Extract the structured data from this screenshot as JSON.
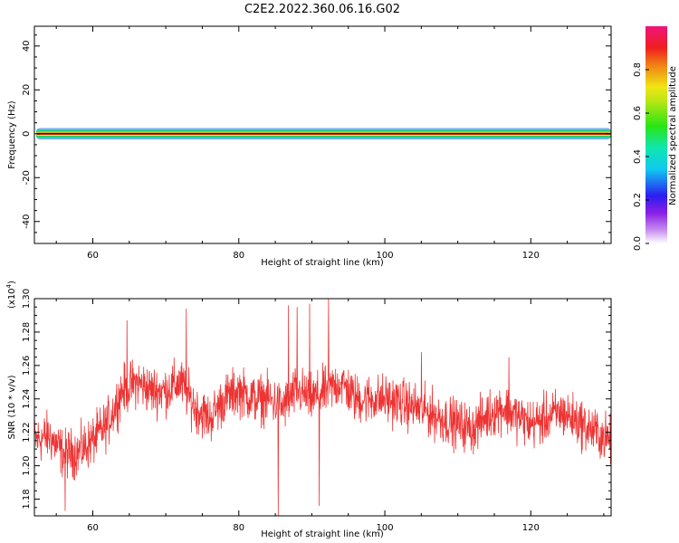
{
  "title": "C2E2.2022.360.06.16.G02",
  "chart_data": [
    {
      "type": "heatmap",
      "xlabel": "Height of straight line (km)",
      "ylabel": "Frequency (Hz)",
      "xlim": [
        52,
        131
      ],
      "ylim": [
        -50,
        49
      ],
      "x_ticks": [
        "60",
        "80",
        "100",
        "120"
      ],
      "y_ticks": [
        "-40",
        "-20",
        "0",
        "20",
        "40"
      ],
      "band": {
        "description": "narrow spectral ridge at 0 Hz across all heights",
        "layers": [
          {
            "half_width_hz": 2.6,
            "color": "#7ab0f5",
            "amplitude": 0.1
          },
          {
            "half_width_hz": 1.9,
            "color": "#1ec8d8",
            "amplitude": 0.3
          },
          {
            "half_width_hz": 1.4,
            "color": "#1edc2a",
            "amplitude": 0.5
          },
          {
            "half_width_hz": 0.9,
            "color": "#e6f01e",
            "amplitude": 0.7
          },
          {
            "half_width_hz": 0.5,
            "color": "#f03c14",
            "amplitude": 0.9
          },
          {
            "half_width_hz": 0.2,
            "color": "#ee1264",
            "amplitude": 1.0
          }
        ]
      },
      "colorbar": {
        "label": "Normalized spectral amplitude",
        "ticks": [
          "0.0",
          "0.2",
          "0.4",
          "0.6",
          "0.8"
        ],
        "range": [
          0,
          1
        ]
      }
    },
    {
      "type": "line",
      "xlabel": "Height of straight line (km)",
      "ylabel": "SNR (10 * v/v)",
      "scale_label": "(x10",
      "scale_exp": "4",
      "scale_close": ")",
      "xlim": [
        52,
        131
      ],
      "ylim": [
        1.17,
        1.3
      ],
      "x_ticks": [
        "60",
        "80",
        "100",
        "120"
      ],
      "y_ticks": [
        "1.18",
        "1.20",
        "1.22",
        "1.24",
        "1.26",
        "1.28",
        "1.30"
      ],
      "series": [
        {
          "color": "#ee3333",
          "trend_x": [
            52,
            54,
            56,
            58,
            60,
            62,
            64,
            66,
            68,
            70,
            72,
            74,
            76,
            78,
            80,
            82,
            84,
            86,
            88,
            90,
            92,
            94,
            96,
            98,
            100,
            102,
            104,
            106,
            108,
            110,
            112,
            114,
            116,
            118,
            120,
            122,
            124,
            126,
            128,
            131
          ],
          "trend_y": [
            1.215,
            1.218,
            1.207,
            1.208,
            1.215,
            1.225,
            1.245,
            1.25,
            1.245,
            1.245,
            1.25,
            1.235,
            1.228,
            1.24,
            1.245,
            1.24,
            1.24,
            1.235,
            1.245,
            1.24,
            1.245,
            1.25,
            1.24,
            1.24,
            1.24,
            1.238,
            1.235,
            1.232,
            1.228,
            1.225,
            1.222,
            1.23,
            1.235,
            1.23,
            1.225,
            1.228,
            1.232,
            1.228,
            1.222,
            1.215
          ],
          "noise_amplitude": 0.012,
          "spikes": [
            {
              "x": 56.2,
              "y": 1.173
            },
            {
              "x": 64.7,
              "y": 1.287
            },
            {
              "x": 72.8,
              "y": 1.294
            },
            {
              "x": 85.4,
              "y": 1.17
            },
            {
              "x": 86.8,
              "y": 1.296
            },
            {
              "x": 88.0,
              "y": 1.295
            },
            {
              "x": 89.7,
              "y": 1.297
            },
            {
              "x": 91.0,
              "y": 1.176
            },
            {
              "x": 92.3,
              "y": 1.3
            },
            {
              "x": 105.0,
              "y": 1.268
            },
            {
              "x": 117.0,
              "y": 1.265
            }
          ]
        }
      ]
    }
  ]
}
